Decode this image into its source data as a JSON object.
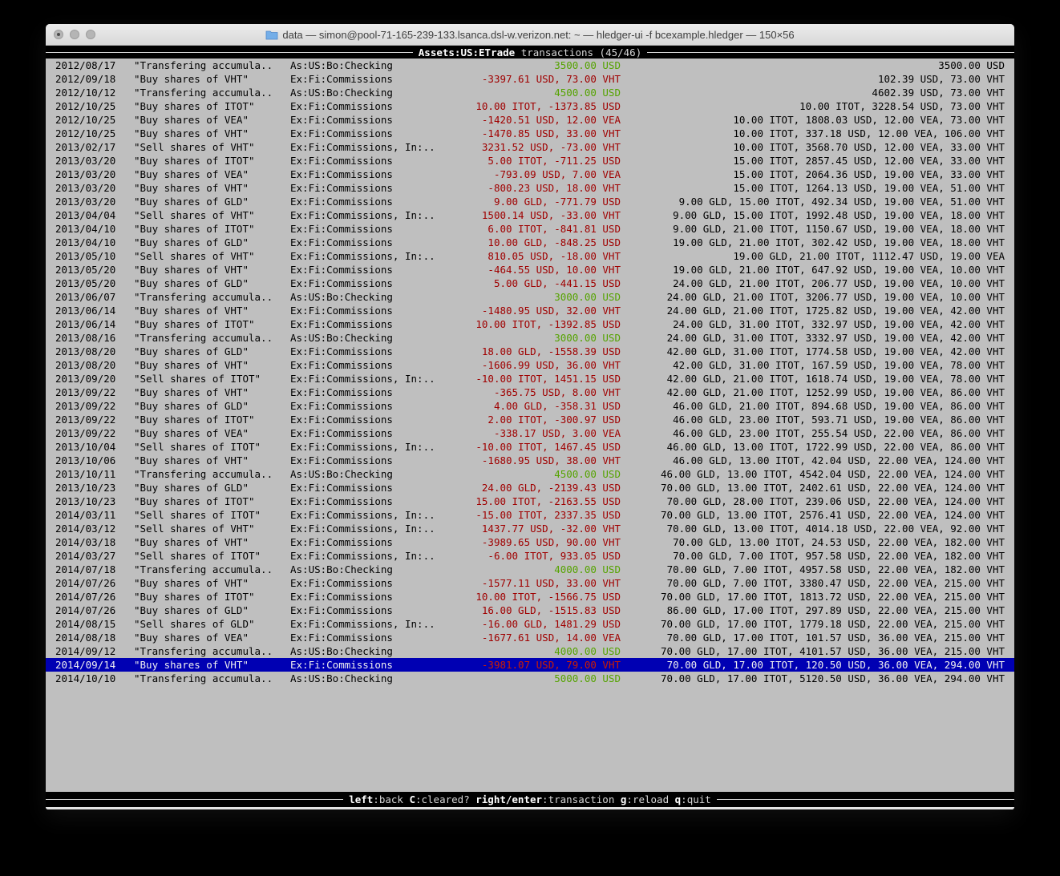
{
  "window": {
    "title": "data — simon@pool-71-165-239-133.lsanca.dsl-w.verizon.net: ~ — hledger-ui -f bcexample.hledger — 150×56"
  },
  "top_bar": {
    "account": "Assets:US:ETrade",
    "mode_and_count": "transactions (45/46)"
  },
  "bottom_bar": {
    "hints": [
      {
        "key": "left",
        "desc": ":back"
      },
      {
        "key": "C",
        "desc": ":cleared?"
      },
      {
        "key": "right/enter",
        "desc": ":transaction"
      },
      {
        "key": "g",
        "desc": ":reload"
      },
      {
        "key": "q",
        "desc": ":quit"
      }
    ]
  },
  "colors": {
    "terminal_background": "#bfbfbf",
    "negative_amount_red": "#a00000",
    "positive_amount_green": "#55a300",
    "selected_row_blue": "#0000b3",
    "selected_amount_red": "#cc1e00",
    "bar_background": "#000000",
    "bar_text": "#ffffff"
  },
  "transactions": [
    {
      "date": "2012/08/17",
      "desc": "\"Transfering accumula..",
      "acct": "As:US:Bo:Checking",
      "amount": "3500.00 USD",
      "amount_color": "green",
      "balance": "3500.00 USD",
      "selected": false
    },
    {
      "date": "2012/09/18",
      "desc": "\"Buy shares of VHT\"",
      "acct": "Ex:Fi:Commissions",
      "amount": "-3397.61 USD, 73.00 VHT",
      "amount_color": "red",
      "balance": "102.39 USD, 73.00 VHT",
      "selected": false
    },
    {
      "date": "2012/10/12",
      "desc": "\"Transfering accumula..",
      "acct": "As:US:Bo:Checking",
      "amount": "4500.00 USD",
      "amount_color": "green",
      "balance": "4602.39 USD, 73.00 VHT",
      "selected": false
    },
    {
      "date": "2012/10/25",
      "desc": "\"Buy shares of ITOT\"",
      "acct": "Ex:Fi:Commissions",
      "amount": "10.00 ITOT, -1373.85 USD",
      "amount_color": "red",
      "balance": "10.00 ITOT, 3228.54 USD, 73.00 VHT",
      "selected": false
    },
    {
      "date": "2012/10/25",
      "desc": "\"Buy shares of VEA\"",
      "acct": "Ex:Fi:Commissions",
      "amount": "-1420.51 USD, 12.00 VEA",
      "amount_color": "red",
      "balance": "10.00 ITOT, 1808.03 USD, 12.00 VEA, 73.00 VHT",
      "selected": false
    },
    {
      "date": "2012/10/25",
      "desc": "\"Buy shares of VHT\"",
      "acct": "Ex:Fi:Commissions",
      "amount": "-1470.85 USD, 33.00 VHT",
      "amount_color": "red",
      "balance": "10.00 ITOT, 337.18 USD, 12.00 VEA, 106.00 VHT",
      "selected": false
    },
    {
      "date": "2013/02/17",
      "desc": "\"Sell shares of VHT\"",
      "acct": "Ex:Fi:Commissions, In:..",
      "amount": "3231.52 USD, -73.00 VHT",
      "amount_color": "red",
      "balance": "10.00 ITOT, 3568.70 USD, 12.00 VEA, 33.00 VHT",
      "selected": false
    },
    {
      "date": "2013/03/20",
      "desc": "\"Buy shares of ITOT\"",
      "acct": "Ex:Fi:Commissions",
      "amount": "5.00 ITOT, -711.25 USD",
      "amount_color": "red",
      "balance": "15.00 ITOT, 2857.45 USD, 12.00 VEA, 33.00 VHT",
      "selected": false
    },
    {
      "date": "2013/03/20",
      "desc": "\"Buy shares of VEA\"",
      "acct": "Ex:Fi:Commissions",
      "amount": "-793.09 USD, 7.00 VEA",
      "amount_color": "red",
      "balance": "15.00 ITOT, 2064.36 USD, 19.00 VEA, 33.00 VHT",
      "selected": false
    },
    {
      "date": "2013/03/20",
      "desc": "\"Buy shares of VHT\"",
      "acct": "Ex:Fi:Commissions",
      "amount": "-800.23 USD, 18.00 VHT",
      "amount_color": "red",
      "balance": "15.00 ITOT, 1264.13 USD, 19.00 VEA, 51.00 VHT",
      "selected": false
    },
    {
      "date": "2013/03/20",
      "desc": "\"Buy shares of GLD\"",
      "acct": "Ex:Fi:Commissions",
      "amount": "9.00 GLD, -771.79 USD",
      "amount_color": "red",
      "balance": "9.00 GLD, 15.00 ITOT, 492.34 USD, 19.00 VEA, 51.00 VHT",
      "selected": false
    },
    {
      "date": "2013/04/04",
      "desc": "\"Sell shares of VHT\"",
      "acct": "Ex:Fi:Commissions, In:..",
      "amount": "1500.14 USD, -33.00 VHT",
      "amount_color": "red",
      "balance": "9.00 GLD, 15.00 ITOT, 1992.48 USD, 19.00 VEA, 18.00 VHT",
      "selected": false
    },
    {
      "date": "2013/04/10",
      "desc": "\"Buy shares of ITOT\"",
      "acct": "Ex:Fi:Commissions",
      "amount": "6.00 ITOT, -841.81 USD",
      "amount_color": "red",
      "balance": "9.00 GLD, 21.00 ITOT, 1150.67 USD, 19.00 VEA, 18.00 VHT",
      "selected": false
    },
    {
      "date": "2013/04/10",
      "desc": "\"Buy shares of GLD\"",
      "acct": "Ex:Fi:Commissions",
      "amount": "10.00 GLD, -848.25 USD",
      "amount_color": "red",
      "balance": "19.00 GLD, 21.00 ITOT, 302.42 USD, 19.00 VEA, 18.00 VHT",
      "selected": false
    },
    {
      "date": "2013/05/10",
      "desc": "\"Sell shares of VHT\"",
      "acct": "Ex:Fi:Commissions, In:..",
      "amount": "810.05 USD, -18.00 VHT",
      "amount_color": "red",
      "balance": "19.00 GLD, 21.00 ITOT, 1112.47 USD, 19.00 VEA",
      "selected": false
    },
    {
      "date": "2013/05/20",
      "desc": "\"Buy shares of VHT\"",
      "acct": "Ex:Fi:Commissions",
      "amount": "-464.55 USD, 10.00 VHT",
      "amount_color": "red",
      "balance": "19.00 GLD, 21.00 ITOT, 647.92 USD, 19.00 VEA, 10.00 VHT",
      "selected": false
    },
    {
      "date": "2013/05/20",
      "desc": "\"Buy shares of GLD\"",
      "acct": "Ex:Fi:Commissions",
      "amount": "5.00 GLD, -441.15 USD",
      "amount_color": "red",
      "balance": "24.00 GLD, 21.00 ITOT, 206.77 USD, 19.00 VEA, 10.00 VHT",
      "selected": false
    },
    {
      "date": "2013/06/07",
      "desc": "\"Transfering accumula..",
      "acct": "As:US:Bo:Checking",
      "amount": "3000.00 USD",
      "amount_color": "green",
      "balance": "24.00 GLD, 21.00 ITOT, 3206.77 USD, 19.00 VEA, 10.00 VHT",
      "selected": false
    },
    {
      "date": "2013/06/14",
      "desc": "\"Buy shares of VHT\"",
      "acct": "Ex:Fi:Commissions",
      "amount": "-1480.95 USD, 32.00 VHT",
      "amount_color": "red",
      "balance": "24.00 GLD, 21.00 ITOT, 1725.82 USD, 19.00 VEA, 42.00 VHT",
      "selected": false
    },
    {
      "date": "2013/06/14",
      "desc": "\"Buy shares of ITOT\"",
      "acct": "Ex:Fi:Commissions",
      "amount": "10.00 ITOT, -1392.85 USD",
      "amount_color": "red",
      "balance": "24.00 GLD, 31.00 ITOT, 332.97 USD, 19.00 VEA, 42.00 VHT",
      "selected": false
    },
    {
      "date": "2013/08/16",
      "desc": "\"Transfering accumula..",
      "acct": "As:US:Bo:Checking",
      "amount": "3000.00 USD",
      "amount_color": "green",
      "balance": "24.00 GLD, 31.00 ITOT, 3332.97 USD, 19.00 VEA, 42.00 VHT",
      "selected": false
    },
    {
      "date": "2013/08/20",
      "desc": "\"Buy shares of GLD\"",
      "acct": "Ex:Fi:Commissions",
      "amount": "18.00 GLD, -1558.39 USD",
      "amount_color": "red",
      "balance": "42.00 GLD, 31.00 ITOT, 1774.58 USD, 19.00 VEA, 42.00 VHT",
      "selected": false
    },
    {
      "date": "2013/08/20",
      "desc": "\"Buy shares of VHT\"",
      "acct": "Ex:Fi:Commissions",
      "amount": "-1606.99 USD, 36.00 VHT",
      "amount_color": "red",
      "balance": "42.00 GLD, 31.00 ITOT, 167.59 USD, 19.00 VEA, 78.00 VHT",
      "selected": false
    },
    {
      "date": "2013/09/20",
      "desc": "\"Sell shares of ITOT\"",
      "acct": "Ex:Fi:Commissions, In:..",
      "amount": "-10.00 ITOT, 1451.15 USD",
      "amount_color": "red",
      "balance": "42.00 GLD, 21.00 ITOT, 1618.74 USD, 19.00 VEA, 78.00 VHT",
      "selected": false
    },
    {
      "date": "2013/09/22",
      "desc": "\"Buy shares of VHT\"",
      "acct": "Ex:Fi:Commissions",
      "amount": "-365.75 USD, 8.00 VHT",
      "amount_color": "red",
      "balance": "42.00 GLD, 21.00 ITOT, 1252.99 USD, 19.00 VEA, 86.00 VHT",
      "selected": false
    },
    {
      "date": "2013/09/22",
      "desc": "\"Buy shares of GLD\"",
      "acct": "Ex:Fi:Commissions",
      "amount": "4.00 GLD, -358.31 USD",
      "amount_color": "red",
      "balance": "46.00 GLD, 21.00 ITOT, 894.68 USD, 19.00 VEA, 86.00 VHT",
      "selected": false
    },
    {
      "date": "2013/09/22",
      "desc": "\"Buy shares of ITOT\"",
      "acct": "Ex:Fi:Commissions",
      "amount": "2.00 ITOT, -300.97 USD",
      "amount_color": "red",
      "balance": "46.00 GLD, 23.00 ITOT, 593.71 USD, 19.00 VEA, 86.00 VHT",
      "selected": false
    },
    {
      "date": "2013/09/22",
      "desc": "\"Buy shares of VEA\"",
      "acct": "Ex:Fi:Commissions",
      "amount": "-338.17 USD, 3.00 VEA",
      "amount_color": "red",
      "balance": "46.00 GLD, 23.00 ITOT, 255.54 USD, 22.00 VEA, 86.00 VHT",
      "selected": false
    },
    {
      "date": "2013/10/04",
      "desc": "\"Sell shares of ITOT\"",
      "acct": "Ex:Fi:Commissions, In:..",
      "amount": "-10.00 ITOT, 1467.45 USD",
      "amount_color": "red",
      "balance": "46.00 GLD, 13.00 ITOT, 1722.99 USD, 22.00 VEA, 86.00 VHT",
      "selected": false
    },
    {
      "date": "2013/10/06",
      "desc": "\"Buy shares of VHT\"",
      "acct": "Ex:Fi:Commissions",
      "amount": "-1680.95 USD, 38.00 VHT",
      "amount_color": "red",
      "balance": "46.00 GLD, 13.00 ITOT, 42.04 USD, 22.00 VEA, 124.00 VHT",
      "selected": false
    },
    {
      "date": "2013/10/11",
      "desc": "\"Transfering accumula..",
      "acct": "As:US:Bo:Checking",
      "amount": "4500.00 USD",
      "amount_color": "green",
      "balance": "46.00 GLD, 13.00 ITOT, 4542.04 USD, 22.00 VEA, 124.00 VHT",
      "selected": false
    },
    {
      "date": "2013/10/23",
      "desc": "\"Buy shares of GLD\"",
      "acct": "Ex:Fi:Commissions",
      "amount": "24.00 GLD, -2139.43 USD",
      "amount_color": "red",
      "balance": "70.00 GLD, 13.00 ITOT, 2402.61 USD, 22.00 VEA, 124.00 VHT",
      "selected": false
    },
    {
      "date": "2013/10/23",
      "desc": "\"Buy shares of ITOT\"",
      "acct": "Ex:Fi:Commissions",
      "amount": "15.00 ITOT, -2163.55 USD",
      "amount_color": "red",
      "balance": "70.00 GLD, 28.00 ITOT, 239.06 USD, 22.00 VEA, 124.00 VHT",
      "selected": false
    },
    {
      "date": "2014/03/11",
      "desc": "\"Sell shares of ITOT\"",
      "acct": "Ex:Fi:Commissions, In:..",
      "amount": "-15.00 ITOT, 2337.35 USD",
      "amount_color": "red",
      "balance": "70.00 GLD, 13.00 ITOT, 2576.41 USD, 22.00 VEA, 124.00 VHT",
      "selected": false
    },
    {
      "date": "2014/03/12",
      "desc": "\"Sell shares of VHT\"",
      "acct": "Ex:Fi:Commissions, In:..",
      "amount": "1437.77 USD, -32.00 VHT",
      "amount_color": "red",
      "balance": "70.00 GLD, 13.00 ITOT, 4014.18 USD, 22.00 VEA, 92.00 VHT",
      "selected": false
    },
    {
      "date": "2014/03/18",
      "desc": "\"Buy shares of VHT\"",
      "acct": "Ex:Fi:Commissions",
      "amount": "-3989.65 USD, 90.00 VHT",
      "amount_color": "red",
      "balance": "70.00 GLD, 13.00 ITOT, 24.53 USD, 22.00 VEA, 182.00 VHT",
      "selected": false
    },
    {
      "date": "2014/03/27",
      "desc": "\"Sell shares of ITOT\"",
      "acct": "Ex:Fi:Commissions, In:..",
      "amount": "-6.00 ITOT, 933.05 USD",
      "amount_color": "red",
      "balance": "70.00 GLD, 7.00 ITOT, 957.58 USD, 22.00 VEA, 182.00 VHT",
      "selected": false
    },
    {
      "date": "2014/07/18",
      "desc": "\"Transfering accumula..",
      "acct": "As:US:Bo:Checking",
      "amount": "4000.00 USD",
      "amount_color": "green",
      "balance": "70.00 GLD, 7.00 ITOT, 4957.58 USD, 22.00 VEA, 182.00 VHT",
      "selected": false
    },
    {
      "date": "2014/07/26",
      "desc": "\"Buy shares of VHT\"",
      "acct": "Ex:Fi:Commissions",
      "amount": "-1577.11 USD, 33.00 VHT",
      "amount_color": "red",
      "balance": "70.00 GLD, 7.00 ITOT, 3380.47 USD, 22.00 VEA, 215.00 VHT",
      "selected": false
    },
    {
      "date": "2014/07/26",
      "desc": "\"Buy shares of ITOT\"",
      "acct": "Ex:Fi:Commissions",
      "amount": "10.00 ITOT, -1566.75 USD",
      "amount_color": "red",
      "balance": "70.00 GLD, 17.00 ITOT, 1813.72 USD, 22.00 VEA, 215.00 VHT",
      "selected": false
    },
    {
      "date": "2014/07/26",
      "desc": "\"Buy shares of GLD\"",
      "acct": "Ex:Fi:Commissions",
      "amount": "16.00 GLD, -1515.83 USD",
      "amount_color": "red",
      "balance": "86.00 GLD, 17.00 ITOT, 297.89 USD, 22.00 VEA, 215.00 VHT",
      "selected": false
    },
    {
      "date": "2014/08/15",
      "desc": "\"Sell shares of GLD\"",
      "acct": "Ex:Fi:Commissions, In:..",
      "amount": "-16.00 GLD, 1481.29 USD",
      "amount_color": "red",
      "balance": "70.00 GLD, 17.00 ITOT, 1779.18 USD, 22.00 VEA, 215.00 VHT",
      "selected": false
    },
    {
      "date": "2014/08/18",
      "desc": "\"Buy shares of VEA\"",
      "acct": "Ex:Fi:Commissions",
      "amount": "-1677.61 USD, 14.00 VEA",
      "amount_color": "red",
      "balance": "70.00 GLD, 17.00 ITOT, 101.57 USD, 36.00 VEA, 215.00 VHT",
      "selected": false
    },
    {
      "date": "2014/09/12",
      "desc": "\"Transfering accumula..",
      "acct": "As:US:Bo:Checking",
      "amount": "4000.00 USD",
      "amount_color": "green",
      "balance": "70.00 GLD, 17.00 ITOT, 4101.57 USD, 36.00 VEA, 215.00 VHT",
      "selected": false
    },
    {
      "date": "2014/09/14",
      "desc": "\"Buy shares of VHT\"",
      "acct": "Ex:Fi:Commissions",
      "amount": "-3981.07 USD, 79.00 VHT",
      "amount_color": "red",
      "balance": "70.00 GLD, 17.00 ITOT, 120.50 USD, 36.00 VEA, 294.00 VHT",
      "selected": true
    },
    {
      "date": "2014/10/10",
      "desc": "\"Transfering accumula..",
      "acct": "As:US:Bo:Checking",
      "amount": "5000.00 USD",
      "amount_color": "green",
      "balance": "70.00 GLD, 17.00 ITOT, 5120.50 USD, 36.00 VEA, 294.00 VHT",
      "selected": false
    }
  ]
}
